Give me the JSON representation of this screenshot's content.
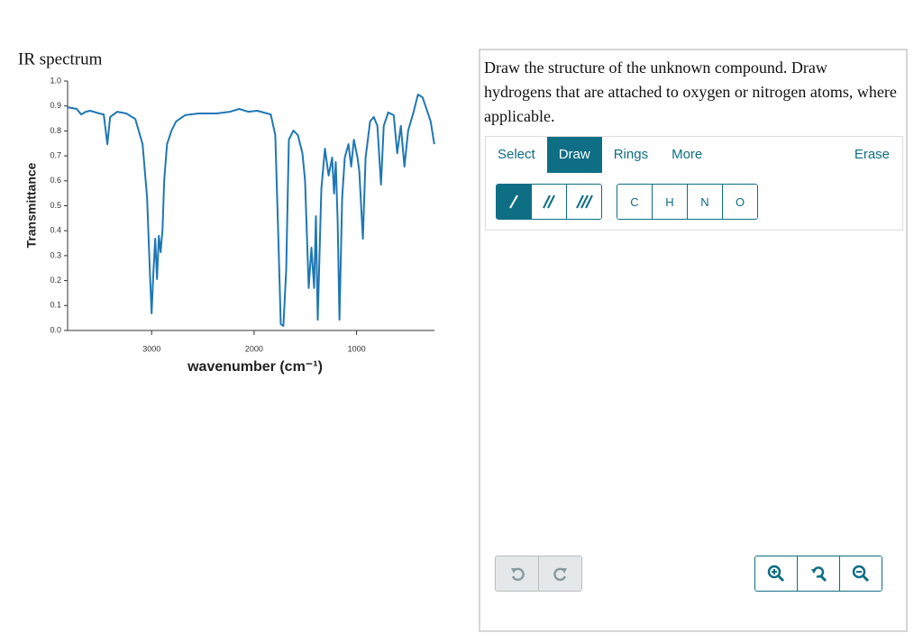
{
  "chart_data": {
    "type": "line",
    "title": "IR spectrum",
    "x_label": "wavenumber (cm⁻¹)",
    "y_label": "Transmittance",
    "color": "#1f77b4",
    "xlim": [
      3820,
      240
    ],
    "ylim": [
      0,
      1
    ],
    "xticks": [
      3000,
      2000,
      1000
    ],
    "yticks": [
      {
        "value": 0,
        "label": "0.0"
      },
      0.1,
      0.2,
      0.3,
      0.4,
      0.5,
      0.6,
      0.7,
      0.8,
      0.9,
      {
        "value": 1,
        "label": "1.0"
      }
    ],
    "x": [
      3819,
      3731,
      3687,
      3643,
      3599,
      3511,
      3467,
      3432,
      3405,
      3335,
      3247,
      3159,
      3088,
      3044,
      3018,
      3000,
      2982,
      2965,
      2947,
      2930,
      2912,
      2894,
      2877,
      2850,
      2806,
      2762,
      2674,
      2542,
      2366,
      2234,
      2145,
      2057,
      1969,
      1837,
      1793,
      1767,
      1740,
      1714,
      1687,
      1661,
      1617,
      1573,
      1529,
      1503,
      1467,
      1441,
      1414,
      1397,
      1379,
      1344,
      1309,
      1273,
      1238,
      1220,
      1203,
      1185,
      1167,
      1141,
      1115,
      1079,
      1053,
      1026,
      991,
      974,
      938,
      912,
      868,
      832,
      797,
      762,
      735,
      691,
      638,
      603,
      568,
      533,
      497,
      445,
      401,
      357,
      321,
      277,
      242
    ],
    "values": [
      0.895,
      0.888,
      0.866,
      0.877,
      0.881,
      0.87,
      0.866,
      0.747,
      0.856,
      0.877,
      0.87,
      0.848,
      0.747,
      0.531,
      0.242,
      0.069,
      0.242,
      0.368,
      0.206,
      0.379,
      0.314,
      0.404,
      0.603,
      0.747,
      0.801,
      0.838,
      0.863,
      0.87,
      0.87,
      0.877,
      0.888,
      0.877,
      0.881,
      0.866,
      0.783,
      0.422,
      0.025,
      0.018,
      0.242,
      0.765,
      0.801,
      0.783,
      0.711,
      0.603,
      0.17,
      0.332,
      0.17,
      0.458,
      0.043,
      0.567,
      0.729,
      0.621,
      0.693,
      0.549,
      0.675,
      0.44,
      0.043,
      0.531,
      0.693,
      0.747,
      0.657,
      0.765,
      0.693,
      0.639,
      0.368,
      0.693,
      0.838,
      0.856,
      0.82,
      0.585,
      0.82,
      0.874,
      0.863,
      0.711,
      0.82,
      0.657,
      0.801,
      0.874,
      0.946,
      0.935,
      0.892,
      0.838,
      0.747
    ]
  },
  "panel": {
    "instructions": "Draw the structure of the unknown compound. Draw hydrogens that are attached to oxygen or nitrogen atoms, where applicable.",
    "tabs": [
      "Select",
      "Draw",
      "Rings",
      "More"
    ],
    "active_tab": "Draw",
    "erase": "Erase",
    "atoms": [
      "C",
      "H",
      "N",
      "O"
    ]
  }
}
